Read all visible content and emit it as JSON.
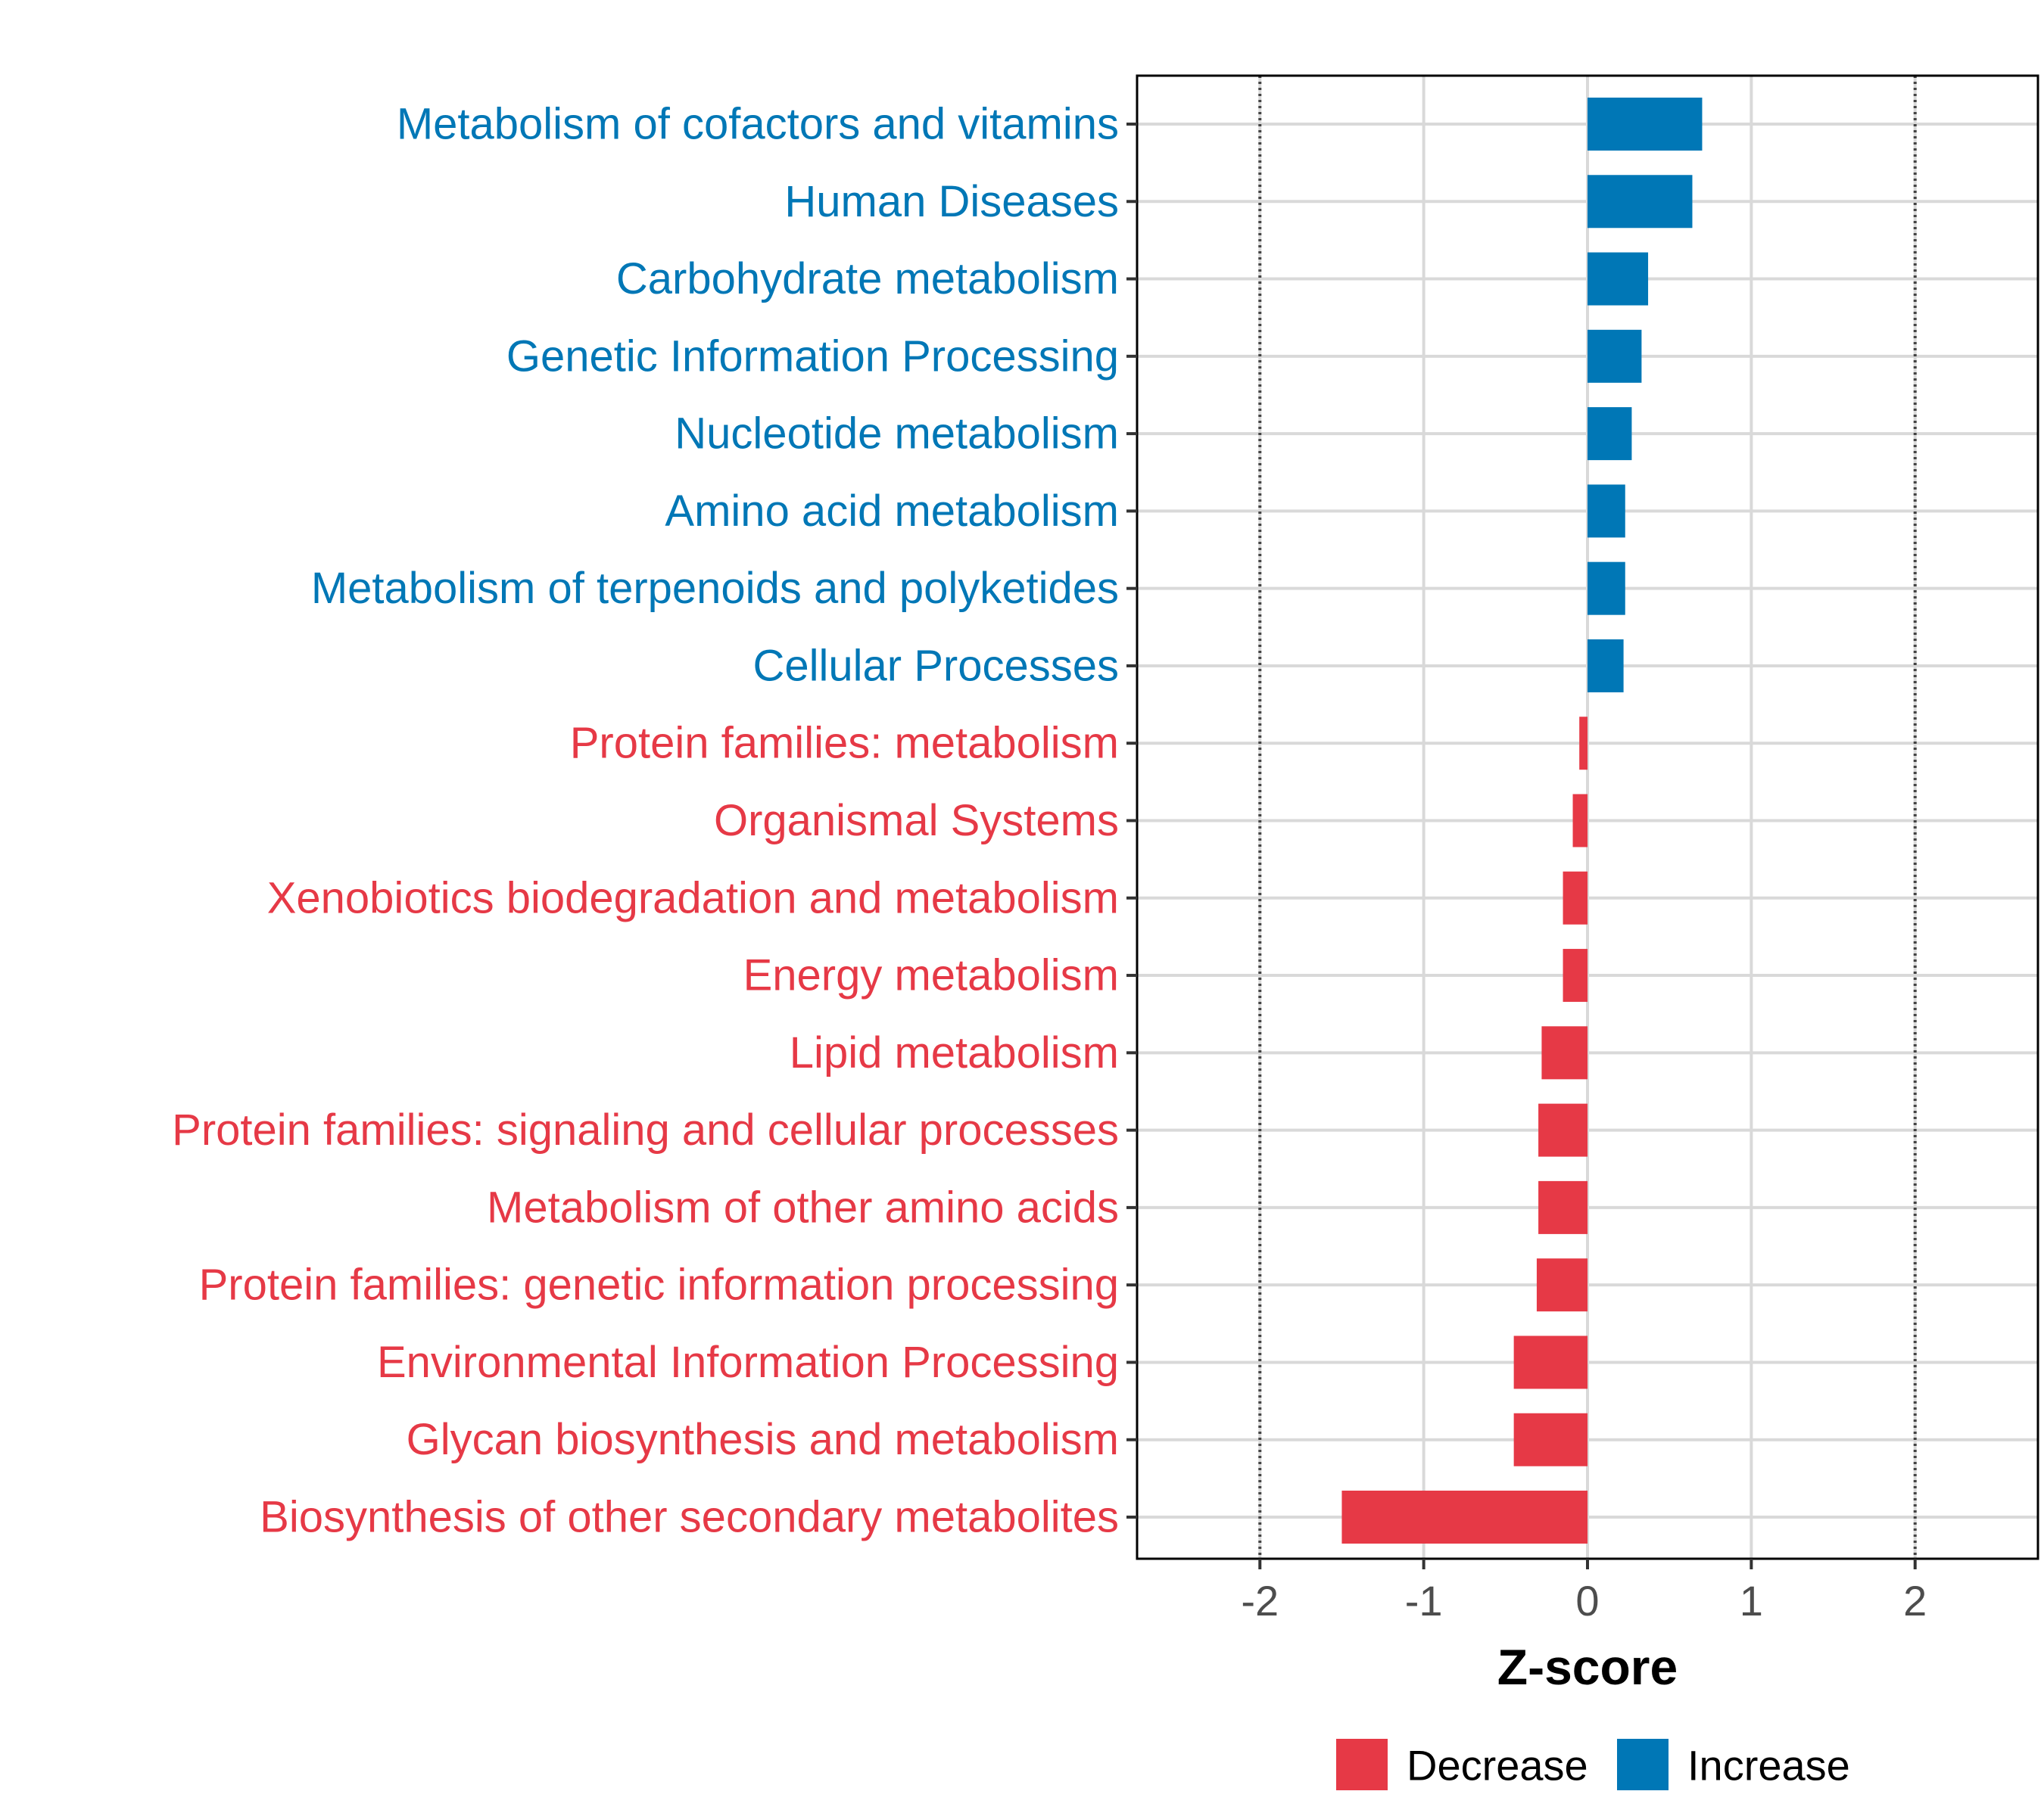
{
  "chart_data": {
    "type": "bar",
    "orientation": "horizontal",
    "title": "",
    "xlabel": "Z-score",
    "ylabel": "",
    "xlim": [
      -2.75,
      2.75
    ],
    "xticks": [
      -2,
      -1,
      0,
      1,
      2
    ],
    "xtick_labels": [
      "-2",
      "-1",
      "0",
      "1",
      "2"
    ],
    "reference_lines": [
      -2,
      2
    ],
    "grid": true,
    "legend_position": "bottom",
    "colors": {
      "Decrease": "#e63946",
      "Increase": "#0077b6",
      "grid": "#d9d9d9",
      "reference_line": "#444444",
      "panel_border": "#000000"
    },
    "legend": [
      {
        "label": "Decrease",
        "color": "#e63946"
      },
      {
        "label": "Increase",
        "color": "#0077b6"
      }
    ],
    "categories": [
      "Metabolism of cofactors and vitamins",
      "Human Diseases",
      "Carbohydrate metabolism",
      "Genetic Information Processing",
      "Nucleotide metabolism",
      "Amino acid metabolism",
      "Metabolism of terpenoids and polyketides",
      "Cellular Processes",
      "Protein families: metabolism",
      "Organismal Systems",
      "Xenobiotics biodegradation and metabolism",
      "Energy metabolism",
      "Lipid metabolism",
      "Protein families: signaling and cellular processes",
      "Metabolism of other amino acids",
      "Protein families: genetic information processing",
      "Environmental Information Processing",
      "Glycan biosynthesis and metabolism",
      "Biosynthesis of other secondary metabolites"
    ],
    "values": [
      0.7,
      0.64,
      0.37,
      0.33,
      0.27,
      0.23,
      0.23,
      0.22,
      -0.05,
      -0.09,
      -0.15,
      -0.15,
      -0.28,
      -0.3,
      -0.3,
      -0.31,
      -0.45,
      -0.45,
      -1.5
    ],
    "groups": [
      "Increase",
      "Increase",
      "Increase",
      "Increase",
      "Increase",
      "Increase",
      "Increase",
      "Increase",
      "Decrease",
      "Decrease",
      "Decrease",
      "Decrease",
      "Decrease",
      "Decrease",
      "Decrease",
      "Decrease",
      "Decrease",
      "Decrease",
      "Decrease"
    ]
  }
}
